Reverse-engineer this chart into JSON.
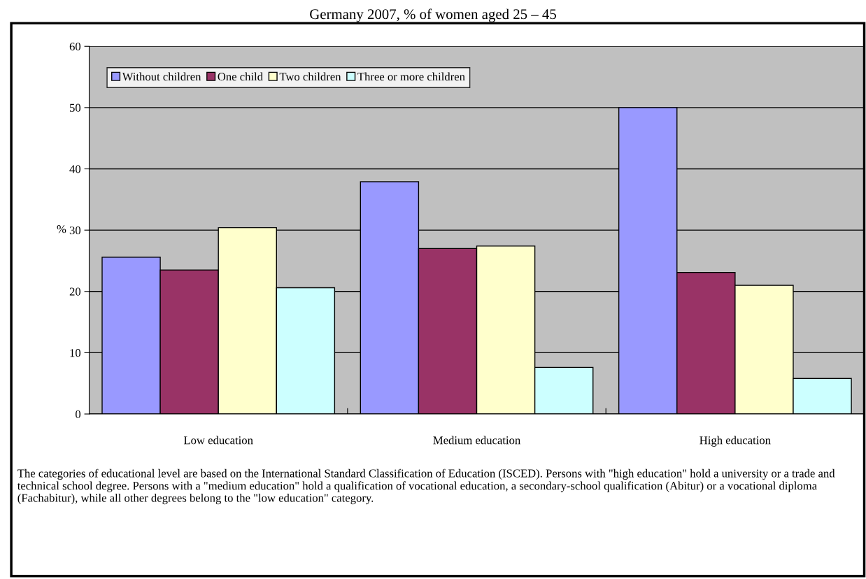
{
  "chart_data": {
    "type": "bar",
    "title": "Germany 2007, % of women aged 25 – 45",
    "ylabel": "%",
    "categories": [
      "Low education",
      "Medium education",
      "High education"
    ],
    "series": [
      {
        "name": "Without children",
        "color": "#9999ff",
        "values": [
          25.6,
          37.9,
          50
        ]
      },
      {
        "name": "One child",
        "color": "#993366",
        "values": [
          23.5,
          27,
          23.1
        ]
      },
      {
        "name": "Two children",
        "color": "#ffffcc",
        "values": [
          30.4,
          27.4,
          21
        ]
      },
      {
        "name": "Three or more children",
        "color": "#ccffff",
        "values": [
          20.6,
          7.6,
          5.8
        ]
      }
    ],
    "ylim": [
      0,
      60
    ],
    "yticks": [
      0,
      10,
      20,
      30,
      40,
      50,
      60
    ],
    "grid": "y",
    "legend": "top left",
    "annotations": [
      "The categories of educational level are based on the International Standard Classification of Education (ISCED). Persons with \"high education\" hold a university or a trade and technical school degree. Persons with a \"medium education\" hold a qualification of vocational education, a secondary-school qualification (Abitur) or a vocational diploma (Fachabitur), while all other degrees belong to the \"low education\" category."
    ]
  }
}
